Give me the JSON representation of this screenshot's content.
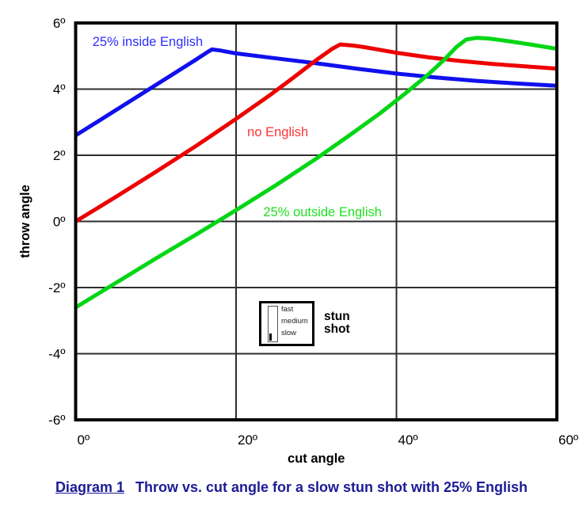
{
  "figure": {
    "caption": {
      "label": "Diagram 1",
      "text": "Throw vs. cut angle for a slow stun shot with 25% English",
      "color": "#1b1b96"
    }
  },
  "chart_data": {
    "type": "line",
    "title": "",
    "xlabel": "cut angle",
    "ylabel": "throw angle",
    "xlim": [
      0,
      60
    ],
    "ylim": [
      -6,
      6
    ],
    "grid": true,
    "x_gridlines": [
      20,
      40
    ],
    "y_gridlines": [
      4,
      2,
      0,
      -2,
      -4
    ],
    "x_ticks": [
      {
        "value": 0,
        "label": "0º"
      },
      {
        "value": 20,
        "label": "20º"
      },
      {
        "value": 40,
        "label": "40º"
      },
      {
        "value": 60,
        "label": "60º"
      }
    ],
    "y_ticks": [
      {
        "value": 6,
        "label": "6º"
      },
      {
        "value": 4,
        "label": "4º"
      },
      {
        "value": 2,
        "label": "2º"
      },
      {
        "value": 0,
        "label": "0º"
      },
      {
        "value": -2,
        "label": "-2º"
      },
      {
        "value": -4,
        "label": "-4º"
      },
      {
        "value": -6,
        "label": "-6º"
      }
    ],
    "series": [
      {
        "id": "inside-english",
        "name": "25% inside English",
        "color": "#1010ee",
        "label": {
          "text": "25% inside English",
          "x": 2.1,
          "y": 5.3,
          "color": "#2e2eff"
        },
        "points": [
          [
            0,
            2.6
          ],
          [
            4,
            3.21
          ],
          [
            8,
            3.82
          ],
          [
            12,
            4.43
          ],
          [
            15,
            4.89
          ],
          [
            16.5,
            5.13
          ],
          [
            17,
            5.2
          ],
          [
            18,
            5.17
          ],
          [
            20,
            5.08
          ],
          [
            25,
            4.93
          ],
          [
            30,
            4.78
          ],
          [
            35,
            4.62
          ],
          [
            40,
            4.47
          ],
          [
            45,
            4.35
          ],
          [
            50,
            4.25
          ],
          [
            55,
            4.17
          ],
          [
            60,
            4.1
          ]
        ]
      },
      {
        "id": "no-english",
        "name": "no English",
        "color": "#ee0000",
        "label": {
          "text": "no English",
          "x": 21.4,
          "y": 2.57,
          "color": "#ff3333"
        },
        "points": [
          [
            0,
            0.0
          ],
          [
            5,
            0.74
          ],
          [
            10,
            1.5
          ],
          [
            15,
            2.28
          ],
          [
            20,
            3.1
          ],
          [
            24,
            3.78
          ],
          [
            27,
            4.32
          ],
          [
            30,
            4.88
          ],
          [
            32,
            5.22
          ],
          [
            33,
            5.35
          ],
          [
            34.5,
            5.32
          ],
          [
            36,
            5.27
          ],
          [
            40,
            5.1
          ],
          [
            44,
            4.96
          ],
          [
            48,
            4.85
          ],
          [
            52,
            4.76
          ],
          [
            56,
            4.69
          ],
          [
            60,
            4.62
          ]
        ]
      },
      {
        "id": "outside-english",
        "name": "25% outside English",
        "color": "#00d614",
        "label": {
          "text": "25% outside English",
          "x": 23.4,
          "y": 0.16,
          "color": "#1fe01f"
        },
        "points": [
          [
            0,
            -2.6
          ],
          [
            5,
            -1.86
          ],
          [
            10,
            -1.12
          ],
          [
            15,
            -0.4
          ],
          [
            20,
            0.34
          ],
          [
            25,
            1.1
          ],
          [
            30,
            1.9
          ],
          [
            34,
            2.58
          ],
          [
            38,
            3.28
          ],
          [
            41,
            3.85
          ],
          [
            44,
            4.45
          ],
          [
            46,
            4.9
          ],
          [
            47.5,
            5.28
          ],
          [
            48.7,
            5.5
          ],
          [
            50,
            5.55
          ],
          [
            51.5,
            5.53
          ],
          [
            54,
            5.45
          ],
          [
            57,
            5.34
          ],
          [
            60,
            5.22
          ]
        ]
      }
    ],
    "inset_legend": {
      "items": [
        "fast",
        "medium",
        "slow"
      ],
      "selected": "slow",
      "title": "stun shot"
    }
  }
}
